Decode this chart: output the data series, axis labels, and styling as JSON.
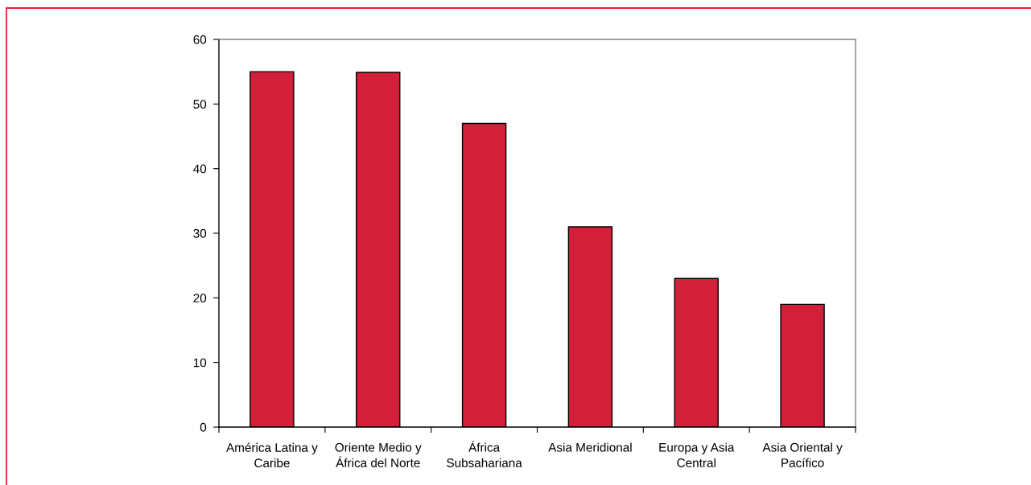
{
  "chart_data": {
    "type": "bar",
    "categories": [
      "América Latina y\nCaribe",
      "Oriente Medio y\nÁfrica del Norte",
      "África\nSubsahariana",
      "Asia Meridional",
      "Europa y Asia\nCentral",
      "Asia Oriental y\nPacífico"
    ],
    "series": [
      {
        "color": "#d2203a",
        "values": [
          55,
          54.9,
          47,
          31,
          23,
          19
        ]
      }
    ],
    "ylim": [
      0,
      60
    ],
    "yticks": [
      0,
      10,
      20,
      30,
      40,
      50,
      60
    ],
    "grid": false
  }
}
